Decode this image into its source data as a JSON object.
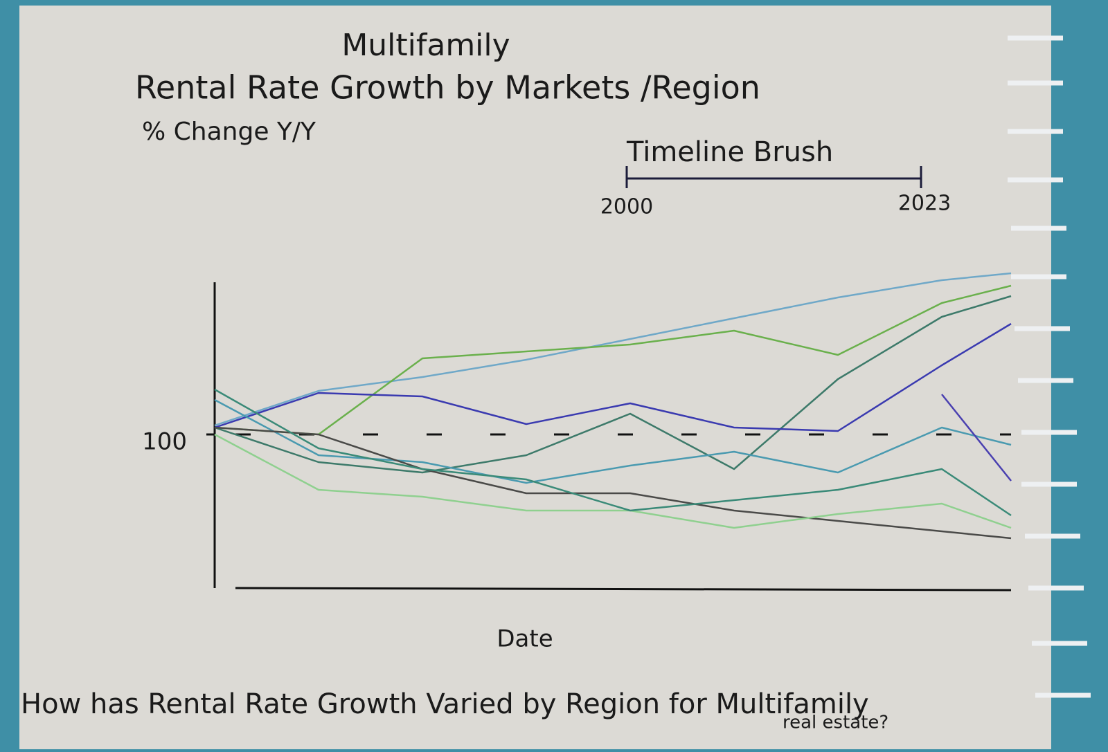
{
  "chart_data": {
    "type": "line",
    "supertitle": "Multifamily",
    "title": "Rental Rate Growth by Markets /Region",
    "subtitle": "% Change Y/Y",
    "xlabel": "Date",
    "caption": [
      "How has Rental Rate Growth Varied by Region for Multifamily",
      "real estate?"
    ],
    "brush": {
      "label": "Timeline Brush",
      "start": 2000,
      "end": 2023
    },
    "x": [
      2000,
      2003,
      2006,
      2009,
      2012,
      2015,
      2018,
      2021,
      2023
    ],
    "xlim": [
      2000,
      2023
    ],
    "ylim": [
      77,
      124
    ],
    "yticks": [
      100
    ],
    "reference_line": 100,
    "series": [
      {
        "color": "#6fa8c8",
        "values": [
          101.3,
          106.3,
          108.3,
          110.8,
          113.8,
          116.8,
          119.8,
          122.3,
          123.3
        ]
      },
      {
        "color": "#6ab04c",
        "values": [
          101,
          100,
          111,
          112,
          113,
          115,
          111.5,
          119,
          121.5
        ]
      },
      {
        "color": "#3d7a6a",
        "values": [
          101,
          96,
          94.5,
          97,
          103,
          95,
          108,
          117,
          120
        ]
      },
      {
        "color": "#3a3ab0",
        "values": [
          101,
          106,
          105.5,
          101.5,
          104.5,
          101,
          100.5,
          110,
          116
        ]
      },
      {
        "color": "#4a9ab0",
        "values": [
          105,
          97,
          96,
          93,
          95.5,
          97.5,
          94.5,
          101,
          98.5
        ]
      },
      {
        "color": "#4a4a48",
        "values": [
          101,
          100,
          95,
          91.5,
          91.5,
          89,
          87.5,
          86,
          85
        ]
      },
      {
        "color": "#8fd08f",
        "values": [
          100,
          92,
          91,
          89,
          89,
          86.5,
          88.5,
          90,
          86.5
        ]
      },
      {
        "color": "#3a8a78",
        "values": [
          106.5,
          98,
          95,
          93.5,
          89,
          90.5,
          92,
          95,
          88.3
        ]
      },
      {
        "color": "#4a40b0",
        "values": [
          null,
          null,
          null,
          null,
          null,
          null,
          null,
          105.8,
          93.3
        ]
      }
    ]
  }
}
